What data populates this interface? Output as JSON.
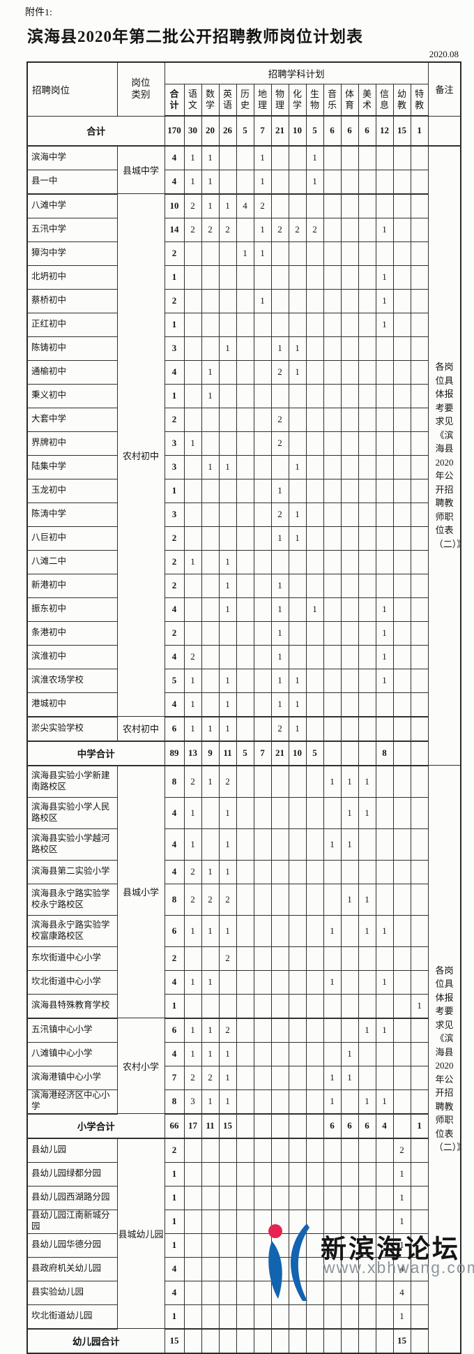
{
  "page": {
    "attachment_label": "附件1:",
    "title": "滨海县2020年第二批公开招聘教师岗位计划表",
    "date": "2020.08"
  },
  "table": {
    "col_headers": {
      "position": "招聘岗位",
      "category": "岗位类别",
      "plan_group": "招聘学科计划",
      "remark": "备注",
      "subjects": [
        "合计",
        "语文",
        "数学",
        "英语",
        "历史",
        "地理",
        "物理",
        "化学",
        "生物",
        "音乐",
        "体育",
        "美术",
        "信息",
        "幼教",
        "特教"
      ]
    },
    "remark_text": "各岗位具体报考要求见《滨海县2020年公开招聘教师职位表（二）》",
    "rows": [
      {
        "name": "合计",
        "span2": true,
        "bold": true,
        "sep": true,
        "values": [
          "170",
          "30",
          "20",
          "26",
          "5",
          "7",
          "21",
          "10",
          "5",
          "6",
          "6",
          "6",
          "12",
          "15",
          "1"
        ],
        "remark": {
          "rowspan": 1,
          "text": ""
        }
      },
      {
        "name": "滨海中学",
        "cat": {
          "label": "县城中学",
          "rowspan": 2
        },
        "values": [
          "4",
          "1",
          "1",
          "",
          "",
          "1",
          "",
          "",
          "1",
          "",
          "",
          "",
          "",
          "",
          ""
        ],
        "remark": {
          "rowspan": 26,
          "text": "各岗位具体报考要求见《滨海县2020年公开招聘教师职位表（二）》"
        }
      },
      {
        "name": "县一中",
        "sep": true,
        "values": [
          "4",
          "1",
          "1",
          "",
          "",
          "1",
          "",
          "",
          "1",
          "",
          "",
          "",
          "",
          "",
          ""
        ]
      },
      {
        "name": "八滩中学",
        "cat": {
          "label": "农村初中",
          "rowspan": 22
        },
        "values": [
          "10",
          "2",
          "1",
          "1",
          "4",
          "2",
          "",
          "",
          "",
          "",
          "",
          "",
          "",
          "",
          ""
        ]
      },
      {
        "name": "五汛中学",
        "values": [
          "14",
          "2",
          "2",
          "2",
          "",
          "1",
          "2",
          "2",
          "2",
          "",
          "",
          "",
          "1",
          "",
          ""
        ]
      },
      {
        "name": "獐沟中学",
        "values": [
          "2",
          "",
          "",
          "",
          "1",
          "1",
          "",
          "",
          "",
          "",
          "",
          "",
          "",
          "",
          ""
        ]
      },
      {
        "name": "北坍初中",
        "values": [
          "1",
          "",
          "",
          "",
          "",
          "",
          "",
          "",
          "",
          "",
          "",
          "",
          "1",
          "",
          ""
        ]
      },
      {
        "name": "蔡桥初中",
        "values": [
          "2",
          "",
          "",
          "",
          "",
          "1",
          "",
          "",
          "",
          "",
          "",
          "",
          "1",
          "",
          ""
        ]
      },
      {
        "name": "正红初中",
        "values": [
          "1",
          "",
          "",
          "",
          "",
          "",
          "",
          "",
          "",
          "",
          "",
          "",
          "1",
          "",
          ""
        ]
      },
      {
        "name": "陈铸初中",
        "values": [
          "3",
          "",
          "",
          "1",
          "",
          "",
          "1",
          "1",
          "",
          "",
          "",
          "",
          "",
          "",
          ""
        ]
      },
      {
        "name": "通榆初中",
        "values": [
          "4",
          "",
          "1",
          "",
          "",
          "",
          "2",
          "1",
          "",
          "",
          "",
          "",
          "",
          "",
          ""
        ]
      },
      {
        "name": "秉义初中",
        "values": [
          "1",
          "",
          "1",
          "",
          "",
          "",
          "",
          "",
          "",
          "",
          "",
          "",
          "",
          "",
          ""
        ]
      },
      {
        "name": "大套中学",
        "values": [
          "2",
          "",
          "",
          "",
          "",
          "",
          "2",
          "",
          "",
          "",
          "",
          "",
          "",
          "",
          ""
        ]
      },
      {
        "name": "界牌初中",
        "values": [
          "3",
          "1",
          "",
          "",
          "",
          "",
          "2",
          "",
          "",
          "",
          "",
          "",
          "",
          "",
          ""
        ]
      },
      {
        "name": "陆集中学",
        "values": [
          "3",
          "",
          "1",
          "1",
          "",
          "",
          "",
          "1",
          "",
          "",
          "",
          "",
          "",
          "",
          ""
        ]
      },
      {
        "name": "玉龙初中",
        "values": [
          "1",
          "",
          "",
          "",
          "",
          "",
          "1",
          "",
          "",
          "",
          "",
          "",
          "",
          "",
          ""
        ]
      },
      {
        "name": "陈涛中学",
        "values": [
          "3",
          "",
          "",
          "",
          "",
          "",
          "2",
          "1",
          "",
          "",
          "",
          "",
          "",
          "",
          ""
        ]
      },
      {
        "name": "八巨初中",
        "values": [
          "2",
          "",
          "",
          "",
          "",
          "",
          "1",
          "1",
          "",
          "",
          "",
          "",
          "",
          "",
          ""
        ]
      },
      {
        "name": "八滩二中",
        "values": [
          "2",
          "1",
          "",
          "1",
          "",
          "",
          "",
          "",
          "",
          "",
          "",
          "",
          "",
          "",
          ""
        ]
      },
      {
        "name": "新港初中",
        "values": [
          "2",
          "",
          "",
          "1",
          "",
          "",
          "1",
          "",
          "",
          "",
          "",
          "",
          "",
          "",
          ""
        ]
      },
      {
        "name": "振东初中",
        "values": [
          "4",
          "",
          "",
          "1",
          "",
          "",
          "1",
          "",
          "1",
          "",
          "",
          "",
          "1",
          "",
          ""
        ]
      },
      {
        "name": "条港初中",
        "values": [
          "2",
          "",
          "",
          "",
          "",
          "",
          "1",
          "",
          "",
          "",
          "",
          "",
          "1",
          "",
          ""
        ]
      },
      {
        "name": "滨淮初中",
        "values": [
          "4",
          "2",
          "",
          "",
          "",
          "",
          "1",
          "",
          "",
          "",
          "",
          "",
          "1",
          "",
          ""
        ]
      },
      {
        "name": "滨淮农场学校",
        "values": [
          "5",
          "1",
          "",
          "1",
          "",
          "",
          "1",
          "1",
          "",
          "",
          "",
          "",
          "1",
          "",
          ""
        ]
      },
      {
        "name": "港城初中",
        "sep": true,
        "values": [
          "4",
          "1",
          "",
          "1",
          "",
          "",
          "1",
          "1",
          "",
          "",
          "",
          "",
          "",
          "",
          ""
        ]
      },
      {
        "name": "淤尖实验学校",
        "cat": {
          "label": "农村初中",
          "rowspan": 1
        },
        "sep": true,
        "values": [
          "6",
          "1",
          "1",
          "1",
          "",
          "",
          "2",
          "1",
          "",
          "",
          "",
          "",
          "",
          "",
          ""
        ]
      },
      {
        "name": "中学合计",
        "span2": true,
        "bold": true,
        "sep": true,
        "values": [
          "89",
          "13",
          "9",
          "11",
          "5",
          "7",
          "21",
          "10",
          "5",
          "",
          "",
          "",
          "8",
          "",
          ""
        ]
      },
      {
        "name": "滨海县实验小学新建南路校区",
        "cat": {
          "label": "县城小学",
          "rowspan": 9
        },
        "tall": true,
        "values": [
          "8",
          "2",
          "1",
          "2",
          "",
          "",
          "",
          "",
          "",
          "1",
          "1",
          "1",
          "",
          "",
          ""
        ],
        "remark": {
          "rowspan": 23,
          "text": "各岗位具体报考要求见《滨海县2020年公开招聘教师职位表（二）》"
        }
      },
      {
        "name": "滨海县实验小学人民路校区",
        "tall": true,
        "values": [
          "4",
          "1",
          "",
          "1",
          "",
          "",
          "",
          "",
          "",
          "",
          "1",
          "1",
          "",
          "",
          ""
        ]
      },
      {
        "name": "滨海县实验小学越河路校区",
        "tall": true,
        "values": [
          "4",
          "1",
          "",
          "1",
          "",
          "",
          "",
          "",
          "",
          "1",
          "1",
          "",
          "",
          "",
          ""
        ]
      },
      {
        "name": "滨海县第二实验小学",
        "values": [
          "4",
          "2",
          "1",
          "1",
          "",
          "",
          "",
          "",
          "",
          "",
          "",
          "",
          "",
          "",
          ""
        ]
      },
      {
        "name": "滨海县永宁路实验学校永宁路校区",
        "tall": true,
        "values": [
          "8",
          "2",
          "2",
          "2",
          "",
          "",
          "",
          "",
          "",
          "",
          "1",
          "1",
          "",
          "",
          ""
        ]
      },
      {
        "name": "滨海县永宁路实验学校富康路校区",
        "tall": true,
        "values": [
          "6",
          "1",
          "1",
          "1",
          "",
          "",
          "",
          "",
          "",
          "1",
          "",
          "1",
          "1",
          "",
          ""
        ]
      },
      {
        "name": "东坎街道中心小学",
        "values": [
          "2",
          "",
          "",
          "2",
          "",
          "",
          "",
          "",
          "",
          "",
          "",
          "",
          "",
          "",
          ""
        ]
      },
      {
        "name": "坎北街道中心小学",
        "values": [
          "4",
          "1",
          "1",
          "",
          "",
          "",
          "",
          "",
          "",
          "1",
          "",
          "",
          "1",
          "",
          ""
        ]
      },
      {
        "name": "滨海县特殊教育学校",
        "sep": true,
        "values": [
          "1",
          "",
          "",
          "",
          "",
          "",
          "",
          "",
          "",
          "",
          "",
          "",
          "",
          "",
          "1"
        ]
      },
      {
        "name": "五汛镇中心小学",
        "cat": {
          "label": "农村小学",
          "rowspan": 4
        },
        "values": [
          "6",
          "1",
          "1",
          "2",
          "",
          "",
          "",
          "",
          "",
          "",
          "",
          "1",
          "1",
          "",
          ""
        ]
      },
      {
        "name": "八滩镇中心小学",
        "values": [
          "4",
          "1",
          "1",
          "1",
          "",
          "",
          "",
          "",
          "",
          "",
          "1",
          "",
          "",
          "",
          ""
        ]
      },
      {
        "name": "滨海港镇中心小学",
        "values": [
          "7",
          "2",
          "2",
          "1",
          "",
          "",
          "",
          "",
          "",
          "1",
          "1",
          "",
          "",
          "",
          ""
        ]
      },
      {
        "name": "滨海港经济区中心小学",
        "sep": true,
        "values": [
          "8",
          "3",
          "1",
          "1",
          "",
          "",
          "",
          "",
          "",
          "1",
          "",
          "1",
          "1",
          "",
          ""
        ]
      },
      {
        "name": "小学合计",
        "span2": true,
        "bold": true,
        "sep": true,
        "values": [
          "66",
          "17",
          "11",
          "15",
          "",
          "",
          "",
          "",
          "",
          "6",
          "6",
          "6",
          "4",
          "",
          "1"
        ]
      },
      {
        "name": "县幼儿园",
        "cat": {
          "label": "县城幼儿园",
          "rowspan": 8
        },
        "values": [
          "2",
          "",
          "",
          "",
          "",
          "",
          "",
          "",
          "",
          "",
          "",
          "",
          "",
          "2",
          ""
        ]
      },
      {
        "name": "县幼儿园绿都分园",
        "values": [
          "1",
          "",
          "",
          "",
          "",
          "",
          "",
          "",
          "",
          "",
          "",
          "",
          "",
          "1",
          ""
        ]
      },
      {
        "name": "县幼儿园西湖路分园",
        "values": [
          "1",
          "",
          "",
          "",
          "",
          "",
          "",
          "",
          "",
          "",
          "",
          "",
          "",
          "1",
          ""
        ]
      },
      {
        "name": "县幼儿园江南新城分园",
        "values": [
          "1",
          "",
          "",
          "",
          "",
          "",
          "",
          "",
          "",
          "",
          "",
          "",
          "",
          "1",
          ""
        ]
      },
      {
        "name": "县幼儿园华德分园",
        "values": [
          "1",
          "",
          "",
          "",
          "",
          "",
          "",
          "",
          "",
          "",
          "",
          "",
          "",
          "1",
          ""
        ]
      },
      {
        "name": "县政府机关幼儿园",
        "values": [
          "4",
          "",
          "",
          "",
          "",
          "",
          "",
          "",
          "",
          "",
          "",
          "",
          "",
          "4",
          ""
        ]
      },
      {
        "name": "县实验幼儿园",
        "values": [
          "4",
          "",
          "",
          "",
          "",
          "",
          "",
          "",
          "",
          "",
          "",
          "",
          "",
          "4",
          ""
        ]
      },
      {
        "name": "坎北街道幼儿园",
        "sep": true,
        "values": [
          "1",
          "",
          "",
          "",
          "",
          "",
          "",
          "",
          "",
          "",
          "",
          "",
          "",
          "1",
          ""
        ]
      },
      {
        "name": "幼儿园合计",
        "span2": true,
        "bold": true,
        "values": [
          "15",
          "",
          "",
          "",
          "",
          "",
          "",
          "",
          "",
          "",
          "",
          "",
          "",
          "15",
          ""
        ]
      }
    ]
  },
  "watermark": {
    "site_name": "新滨海论坛",
    "site_url": "www.xbhwang.com",
    "brand_blue": "#1264b0",
    "brand_red": "#e62450"
  }
}
